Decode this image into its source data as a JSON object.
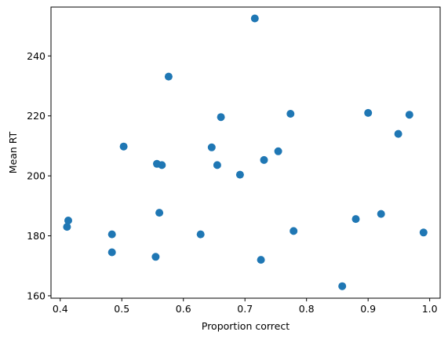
{
  "chart_data": {
    "type": "scatter",
    "xlabel": "Proportion correct",
    "ylabel": "Mean RT",
    "xlim": [
      0.385,
      1.017
    ],
    "ylim": [
      159.2,
      256.3
    ],
    "xticks": [
      0.4,
      0.5,
      0.6,
      0.7,
      0.8,
      0.9,
      1.0
    ],
    "xtick_labels": [
      "0.4",
      "0.5",
      "0.6",
      "0.7",
      "0.8",
      "0.9",
      "1.0"
    ],
    "yticks": [
      160,
      180,
      200,
      220,
      240
    ],
    "ytick_labels": [
      "160",
      "180",
      "200",
      "220",
      "240"
    ],
    "grid": false,
    "marker_color": "#1f77b4",
    "points": [
      {
        "x": 0.716,
        "y": 252.5
      },
      {
        "x": 0.576,
        "y": 233.1
      },
      {
        "x": 0.661,
        "y": 219.6
      },
      {
        "x": 0.774,
        "y": 220.7
      },
      {
        "x": 0.9,
        "y": 221.0
      },
      {
        "x": 0.967,
        "y": 220.4
      },
      {
        "x": 0.949,
        "y": 214.0
      },
      {
        "x": 0.503,
        "y": 209.8
      },
      {
        "x": 0.646,
        "y": 209.5
      },
      {
        "x": 0.754,
        "y": 208.2
      },
      {
        "x": 0.731,
        "y": 205.3
      },
      {
        "x": 0.557,
        "y": 204.0
      },
      {
        "x": 0.565,
        "y": 203.6
      },
      {
        "x": 0.655,
        "y": 203.6
      },
      {
        "x": 0.692,
        "y": 200.4
      },
      {
        "x": 0.561,
        "y": 187.7
      },
      {
        "x": 0.921,
        "y": 187.3
      },
      {
        "x": 0.88,
        "y": 185.6
      },
      {
        "x": 0.413,
        "y": 185.1
      },
      {
        "x": 0.411,
        "y": 183.0
      },
      {
        "x": 0.779,
        "y": 181.6
      },
      {
        "x": 0.99,
        "y": 181.1
      },
      {
        "x": 0.484,
        "y": 180.5
      },
      {
        "x": 0.628,
        "y": 180.5
      },
      {
        "x": 0.484,
        "y": 174.5
      },
      {
        "x": 0.555,
        "y": 173.0
      },
      {
        "x": 0.726,
        "y": 172.0
      },
      {
        "x": 0.858,
        "y": 163.2
      }
    ]
  }
}
